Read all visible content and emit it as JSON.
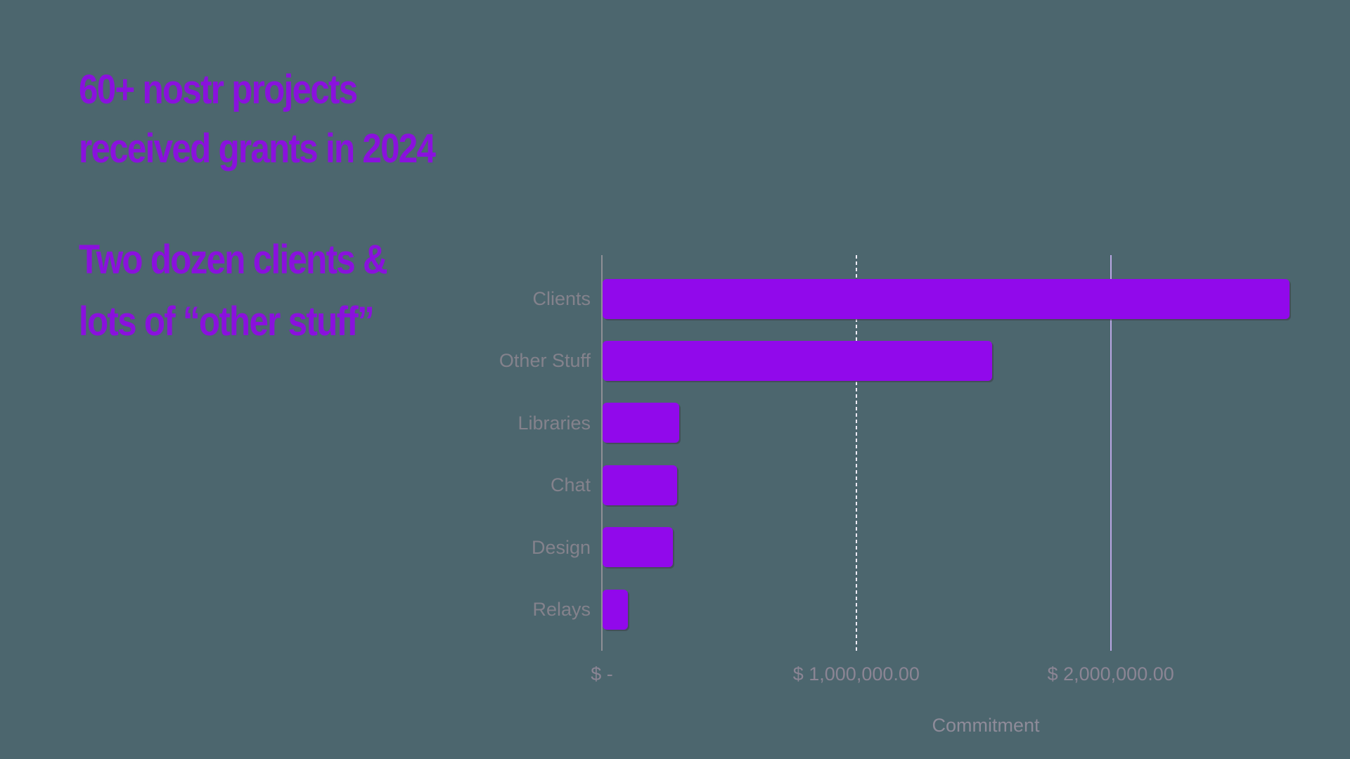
{
  "slide": {
    "title_line1": "60+ nostr projects",
    "title_line2": "received grants in 2024",
    "subtitle_line1": "Two dozen clients &",
    "subtitle_line2": "lots of “other stuff”"
  },
  "colors": {
    "background": "#4C666E",
    "heading": "#8A11DD",
    "bar": "#9109EB",
    "axis_line": "#8F8F96",
    "category_label": "#84828C",
    "tick_label": "#8B8594",
    "axis_title": "#8E8B99"
  },
  "chart_data": {
    "type": "bar",
    "orientation": "horizontal",
    "title": "",
    "categories": [
      "Clients",
      "Other Stuff",
      "Libraries",
      "Chat",
      "Design",
      "Relays"
    ],
    "values": [
      2700000,
      1530000,
      300000,
      293000,
      275000,
      100000
    ],
    "xlabel": "Commitment",
    "ylabel": "",
    "xlim": [
      0,
      2830000
    ],
    "x_ticks": [
      {
        "value": 0,
        "label": "$ -",
        "grid_color": null,
        "grid_style": "none"
      },
      {
        "value": 1000000,
        "label": "$ 1,000,000.00",
        "grid_color": "#EDEAF5",
        "grid_style": "dashed"
      },
      {
        "value": 2000000,
        "label": "$ 2,000,000.00",
        "grid_color": "#B9A7E5",
        "grid_style": "solid"
      }
    ],
    "grid": true,
    "legend": false,
    "bar_color": "#9109EB"
  }
}
